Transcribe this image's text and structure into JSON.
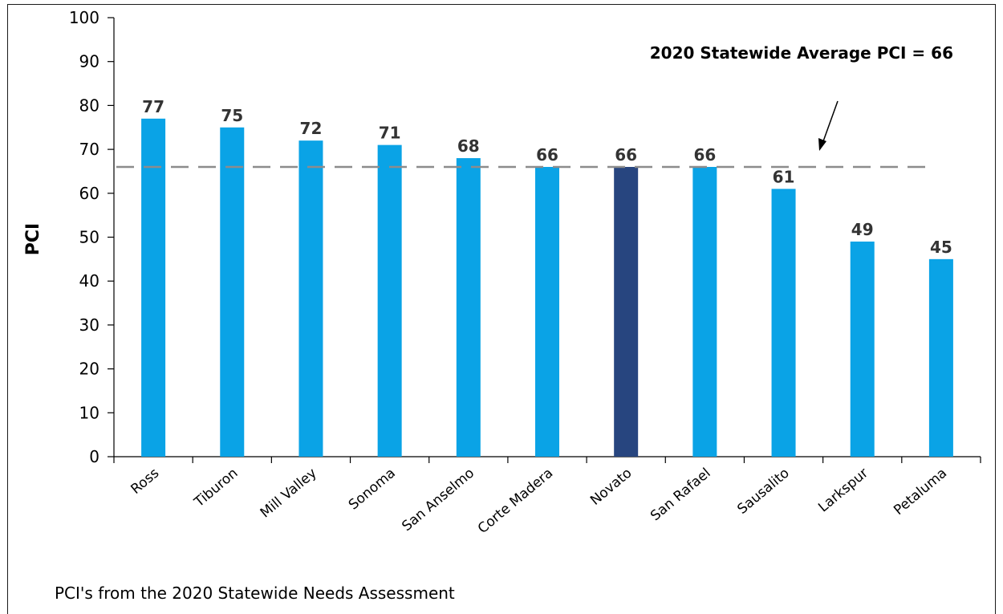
{
  "chart_data": {
    "type": "bar",
    "categories": [
      "Ross",
      "Tiburon",
      "Mill Valley",
      "Sonoma",
      "San Anselmo",
      "Corte Madera",
      "Novato",
      "San Rafael",
      "Sausalito",
      "Larkspur",
      "Petaluma"
    ],
    "values": [
      77,
      75,
      72,
      71,
      68,
      66,
      66,
      66,
      61,
      49,
      45
    ],
    "ylabel": "PCI",
    "xlabel": "",
    "ylim": [
      0,
      100
    ],
    "yticks": [
      0,
      10,
      20,
      30,
      40,
      50,
      60,
      70,
      80,
      90,
      100
    ],
    "grid": false,
    "bar_color": "#0aa3e6",
    "highlight_category": "Novato",
    "highlight_color": "#27457f",
    "reference_line": {
      "value": 66,
      "style": "dashed",
      "color": "#8c8c8c"
    },
    "annotation": "2020 Statewide Average PCI = 66",
    "footnote": "PCI's from the 2020 Statewide Needs Assessment"
  }
}
